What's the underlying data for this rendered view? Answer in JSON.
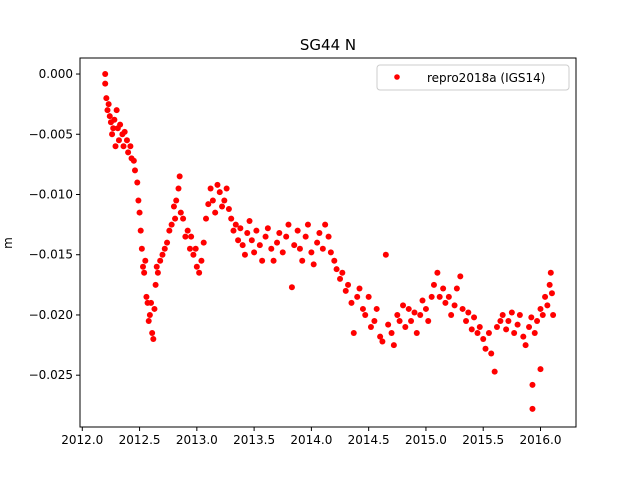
{
  "chart_data": {
    "type": "scatter",
    "title": "SG44 N",
    "xlabel": "",
    "ylabel": "m",
    "xlim": [
      2011.98,
      2016.31
    ],
    "ylim": [
      -0.0293,
      0.00133
    ],
    "xticks": [
      2012.0,
      2012.5,
      2013.0,
      2013.5,
      2014.0,
      2014.5,
      2015.0,
      2015.5,
      2016.0
    ],
    "xtick_labels": [
      "2012.0",
      "2012.5",
      "2013.0",
      "2013.5",
      "2014.0",
      "2014.5",
      "2015.0",
      "2015.5",
      "2016.0"
    ],
    "yticks": [
      0.0,
      -0.005,
      -0.01,
      -0.015,
      -0.02,
      -0.025
    ],
    "ytick_labels": [
      "0.000",
      "−0.005",
      "−0.010",
      "−0.015",
      "−0.020",
      "−0.025"
    ],
    "grid": false,
    "legend": {
      "position": "top-right",
      "entries": [
        "repro2018a (IGS14)"
      ]
    },
    "series": [
      {
        "name": "repro2018a (IGS14)",
        "color": "#ff0000",
        "marker": "circle",
        "points": [
          [
            2012.2,
            0.0
          ],
          [
            2012.2,
            -0.0008
          ],
          [
            2012.21,
            -0.002
          ],
          [
            2012.22,
            -0.003
          ],
          [
            2012.23,
            -0.0025
          ],
          [
            2012.24,
            -0.0035
          ],
          [
            2012.25,
            -0.004
          ],
          [
            2012.26,
            -0.005
          ],
          [
            2012.27,
            -0.0045
          ],
          [
            2012.28,
            -0.0038
          ],
          [
            2012.29,
            -0.006
          ],
          [
            2012.3,
            -0.003
          ],
          [
            2012.31,
            -0.0045
          ],
          [
            2012.32,
            -0.0055
          ],
          [
            2012.33,
            -0.0042
          ],
          [
            2012.35,
            -0.005
          ],
          [
            2012.36,
            -0.006
          ],
          [
            2012.37,
            -0.0048
          ],
          [
            2012.39,
            -0.0055
          ],
          [
            2012.4,
            -0.0065
          ],
          [
            2012.42,
            -0.006
          ],
          [
            2012.43,
            -0.007
          ],
          [
            2012.45,
            -0.0072
          ],
          [
            2012.46,
            -0.008
          ],
          [
            2012.48,
            -0.009
          ],
          [
            2012.49,
            -0.0105
          ],
          [
            2012.5,
            -0.0115
          ],
          [
            2012.51,
            -0.013
          ],
          [
            2012.52,
            -0.0145
          ],
          [
            2012.53,
            -0.016
          ],
          [
            2012.54,
            -0.0165
          ],
          [
            2012.55,
            -0.0155
          ],
          [
            2012.56,
            -0.0185
          ],
          [
            2012.57,
            -0.019
          ],
          [
            2012.58,
            -0.0205
          ],
          [
            2012.59,
            -0.02
          ],
          [
            2012.6,
            -0.019
          ],
          [
            2012.61,
            -0.0215
          ],
          [
            2012.62,
            -0.022
          ],
          [
            2012.63,
            -0.0195
          ],
          [
            2012.64,
            -0.0175
          ],
          [
            2012.65,
            -0.016
          ],
          [
            2012.66,
            -0.0165
          ],
          [
            2012.68,
            -0.0155
          ],
          [
            2012.7,
            -0.015
          ],
          [
            2012.72,
            -0.0145
          ],
          [
            2012.74,
            -0.014
          ],
          [
            2012.76,
            -0.013
          ],
          [
            2012.78,
            -0.0125
          ],
          [
            2012.8,
            -0.011
          ],
          [
            2012.81,
            -0.012
          ],
          [
            2012.82,
            -0.0105
          ],
          [
            2012.84,
            -0.0095
          ],
          [
            2012.85,
            -0.0085
          ],
          [
            2012.86,
            -0.0115
          ],
          [
            2012.88,
            -0.012
          ],
          [
            2012.9,
            -0.0135
          ],
          [
            2012.92,
            -0.013
          ],
          [
            2012.94,
            -0.0145
          ],
          [
            2012.95,
            -0.0135
          ],
          [
            2012.97,
            -0.015
          ],
          [
            2012.99,
            -0.0145
          ],
          [
            2013.0,
            -0.016
          ],
          [
            2013.02,
            -0.0165
          ],
          [
            2013.04,
            -0.0155
          ],
          [
            2013.06,
            -0.014
          ],
          [
            2013.08,
            -0.012
          ],
          [
            2013.1,
            -0.0108
          ],
          [
            2013.12,
            -0.0095
          ],
          [
            2013.14,
            -0.0105
          ],
          [
            2013.16,
            -0.0115
          ],
          [
            2013.18,
            -0.0092
          ],
          [
            2013.2,
            -0.0098
          ],
          [
            2013.22,
            -0.011
          ],
          [
            2013.24,
            -0.0105
          ],
          [
            2013.26,
            -0.0095
          ],
          [
            2013.28,
            -0.0112
          ],
          [
            2013.3,
            -0.012
          ],
          [
            2013.32,
            -0.013
          ],
          [
            2013.34,
            -0.0125
          ],
          [
            2013.36,
            -0.0138
          ],
          [
            2013.38,
            -0.0128
          ],
          [
            2013.4,
            -0.0142
          ],
          [
            2013.42,
            -0.015
          ],
          [
            2013.44,
            -0.0132
          ],
          [
            2013.46,
            -0.0122
          ],
          [
            2013.48,
            -0.0138
          ],
          [
            2013.5,
            -0.0148
          ],
          [
            2013.52,
            -0.013
          ],
          [
            2013.55,
            -0.0142
          ],
          [
            2013.57,
            -0.0155
          ],
          [
            2013.6,
            -0.0135
          ],
          [
            2013.62,
            -0.0128
          ],
          [
            2013.65,
            -0.0145
          ],
          [
            2013.67,
            -0.0155
          ],
          [
            2013.7,
            -0.014
          ],
          [
            2013.72,
            -0.0132
          ],
          [
            2013.75,
            -0.0148
          ],
          [
            2013.78,
            -0.0135
          ],
          [
            2013.8,
            -0.0125
          ],
          [
            2013.83,
            -0.0177
          ],
          [
            2013.85,
            -0.0142
          ],
          [
            2013.88,
            -0.013
          ],
          [
            2013.9,
            -0.0145
          ],
          [
            2013.92,
            -0.0155
          ],
          [
            2013.95,
            -0.0135
          ],
          [
            2013.97,
            -0.0125
          ],
          [
            2014.0,
            -0.0148
          ],
          [
            2014.02,
            -0.0158
          ],
          [
            2014.05,
            -0.014
          ],
          [
            2014.07,
            -0.0132
          ],
          [
            2014.1,
            -0.0145
          ],
          [
            2014.12,
            -0.0125
          ],
          [
            2014.15,
            -0.0135
          ],
          [
            2014.17,
            -0.0148
          ],
          [
            2014.2,
            -0.0155
          ],
          [
            2014.22,
            -0.0162
          ],
          [
            2014.25,
            -0.017
          ],
          [
            2014.27,
            -0.0165
          ],
          [
            2014.3,
            -0.018
          ],
          [
            2014.32,
            -0.0175
          ],
          [
            2014.35,
            -0.019
          ],
          [
            2014.37,
            -0.0215
          ],
          [
            2014.4,
            -0.0185
          ],
          [
            2014.42,
            -0.0178
          ],
          [
            2014.45,
            -0.0195
          ],
          [
            2014.47,
            -0.02
          ],
          [
            2014.5,
            -0.0185
          ],
          [
            2014.52,
            -0.021
          ],
          [
            2014.55,
            -0.0205
          ],
          [
            2014.57,
            -0.0195
          ],
          [
            2014.6,
            -0.0218
          ],
          [
            2014.62,
            -0.0222
          ],
          [
            2014.65,
            -0.015
          ],
          [
            2014.67,
            -0.0208
          ],
          [
            2014.7,
            -0.0215
          ],
          [
            2014.72,
            -0.0225
          ],
          [
            2014.75,
            -0.02
          ],
          [
            2014.77,
            -0.0205
          ],
          [
            2014.8,
            -0.0192
          ],
          [
            2014.82,
            -0.021
          ],
          [
            2014.85,
            -0.0195
          ],
          [
            2014.87,
            -0.0205
          ],
          [
            2014.9,
            -0.0198
          ],
          [
            2014.92,
            -0.0215
          ],
          [
            2014.95,
            -0.02
          ],
          [
            2014.97,
            -0.0188
          ],
          [
            2015.0,
            -0.0195
          ],
          [
            2015.02,
            -0.0205
          ],
          [
            2015.05,
            -0.0185
          ],
          [
            2015.07,
            -0.0175
          ],
          [
            2015.1,
            -0.0165
          ],
          [
            2015.12,
            -0.0185
          ],
          [
            2015.15,
            -0.0178
          ],
          [
            2015.17,
            -0.019
          ],
          [
            2015.2,
            -0.0185
          ],
          [
            2015.22,
            -0.02
          ],
          [
            2015.25,
            -0.0192
          ],
          [
            2015.27,
            -0.0178
          ],
          [
            2015.3,
            -0.0168
          ],
          [
            2015.32,
            -0.0195
          ],
          [
            2015.35,
            -0.0205
          ],
          [
            2015.37,
            -0.0198
          ],
          [
            2015.4,
            -0.0212
          ],
          [
            2015.42,
            -0.0202
          ],
          [
            2015.45,
            -0.0215
          ],
          [
            2015.47,
            -0.021
          ],
          [
            2015.5,
            -0.022
          ],
          [
            2015.52,
            -0.0228
          ],
          [
            2015.55,
            -0.0215
          ],
          [
            2015.57,
            -0.0232
          ],
          [
            2015.6,
            -0.0247
          ],
          [
            2015.62,
            -0.021
          ],
          [
            2015.65,
            -0.0205
          ],
          [
            2015.67,
            -0.02
          ],
          [
            2015.7,
            -0.0212
          ],
          [
            2015.72,
            -0.0205
          ],
          [
            2015.75,
            -0.0198
          ],
          [
            2015.77,
            -0.0215
          ],
          [
            2015.8,
            -0.0208
          ],
          [
            2015.82,
            -0.02
          ],
          [
            2015.85,
            -0.0218
          ],
          [
            2015.87,
            -0.0225
          ],
          [
            2015.9,
            -0.021
          ],
          [
            2015.92,
            -0.0202
          ],
          [
            2015.93,
            -0.0258
          ],
          [
            2015.93,
            -0.0278
          ],
          [
            2015.95,
            -0.0215
          ],
          [
            2015.97,
            -0.0205
          ],
          [
            2016.0,
            -0.0245
          ],
          [
            2016.0,
            -0.0195
          ],
          [
            2016.02,
            -0.02
          ],
          [
            2016.04,
            -0.0185
          ],
          [
            2016.06,
            -0.0192
          ],
          [
            2016.08,
            -0.0175
          ],
          [
            2016.09,
            -0.0165
          ],
          [
            2016.1,
            -0.0182
          ],
          [
            2016.11,
            -0.02
          ]
        ]
      }
    ]
  }
}
